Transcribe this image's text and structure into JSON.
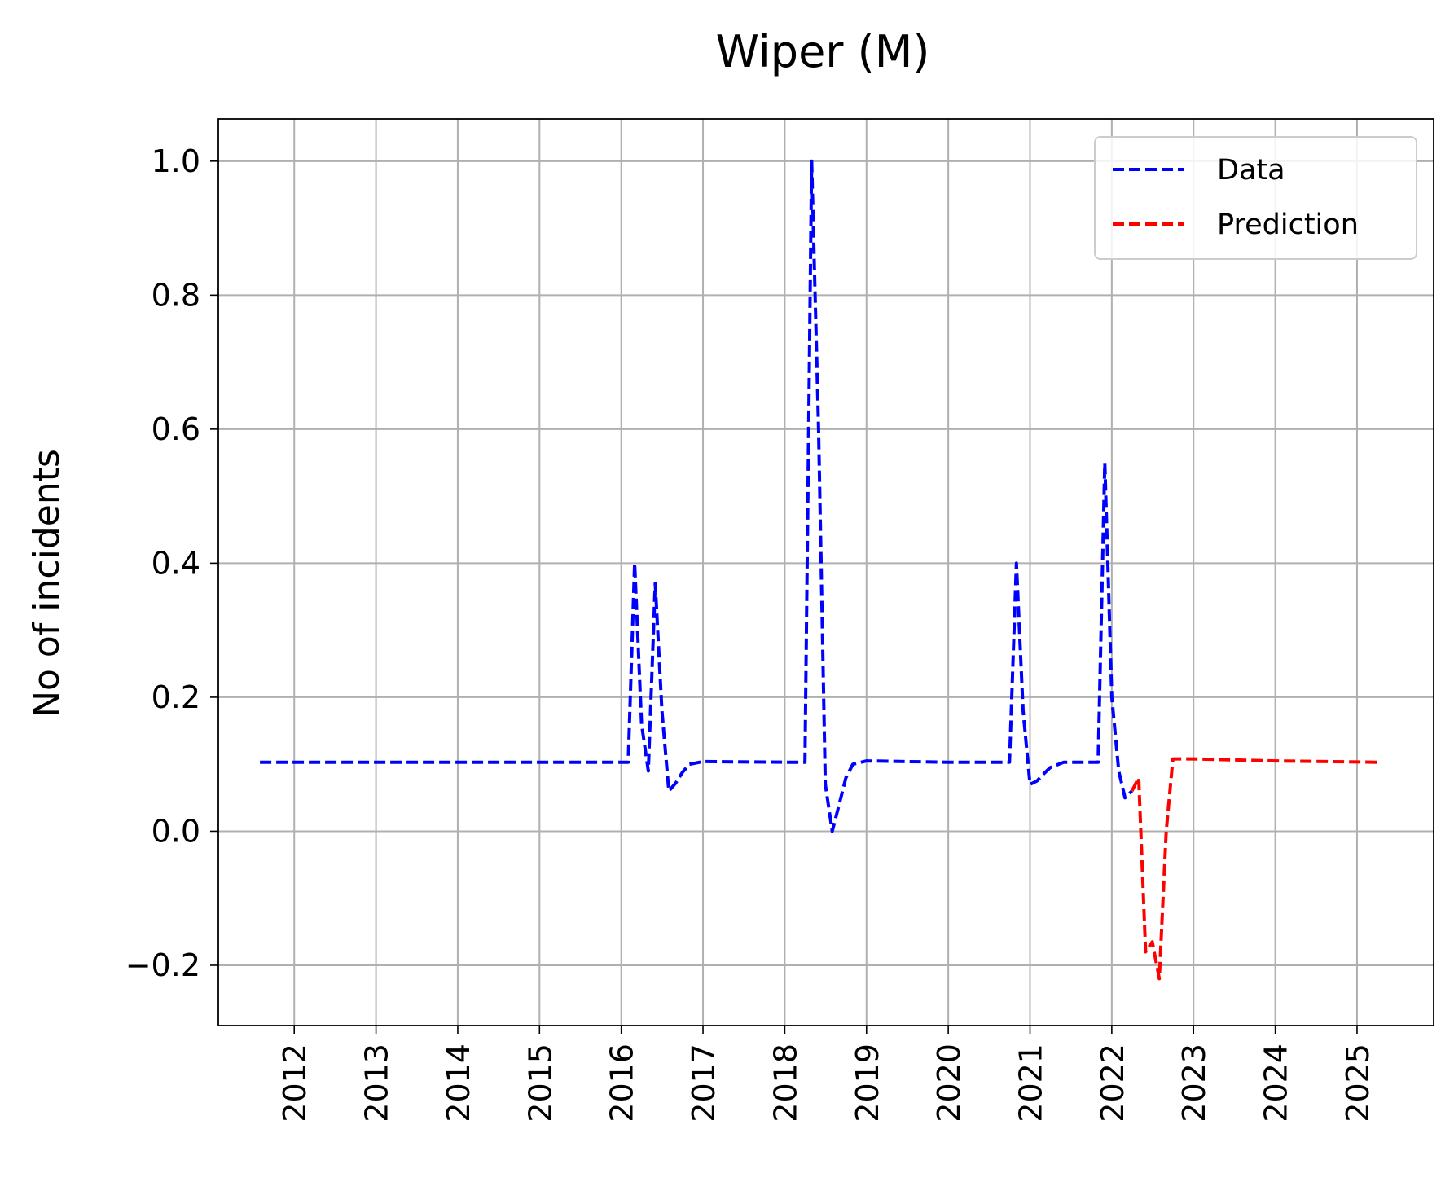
{
  "chart_data": {
    "type": "line",
    "title": "Wiper (M)",
    "xlabel": "",
    "ylabel": "No of incidents",
    "x_ticks": [
      "2012",
      "2013",
      "2014",
      "2015",
      "2016",
      "2017",
      "2018",
      "2019",
      "2020",
      "2021",
      "2022",
      "2023",
      "2024",
      "2025"
    ],
    "y_ticks": [
      "−0.2",
      "0.0",
      "0.2",
      "0.4",
      "0.6",
      "0.8",
      "1.0"
    ],
    "y_tick_values": [
      -0.2,
      0.0,
      0.2,
      0.4,
      0.6,
      0.8,
      1.0
    ],
    "xlim": [
      "2011-01-27",
      "2025-12-09"
    ],
    "ylim": [
      -0.29,
      1.063
    ],
    "grid": true,
    "legend": "upper-right",
    "series": [
      {
        "name": "Data",
        "color": "#0000ff",
        "style": "dashed",
        "points": [
          [
            "2011-08-01",
            0.103
          ],
          [
            "2012-01-01",
            0.103
          ],
          [
            "2013-01-01",
            0.103
          ],
          [
            "2014-01-01",
            0.103
          ],
          [
            "2015-01-01",
            0.103
          ],
          [
            "2016-01-01",
            0.103
          ],
          [
            "2016-02-01",
            0.103
          ],
          [
            "2016-03-01",
            0.4
          ],
          [
            "2016-04-01",
            0.16
          ],
          [
            "2016-05-01",
            0.09
          ],
          [
            "2016-06-01",
            0.37
          ],
          [
            "2016-07-01",
            0.18
          ],
          [
            "2016-08-01",
            0.06
          ],
          [
            "2016-09-01",
            0.072
          ],
          [
            "2016-10-01",
            0.088
          ],
          [
            "2016-11-01",
            0.1
          ],
          [
            "2017-01-01",
            0.104
          ],
          [
            "2018-01-01",
            0.103
          ],
          [
            "2018-04-01",
            0.103
          ],
          [
            "2018-05-01",
            1.0
          ],
          [
            "2018-06-01",
            0.6
          ],
          [
            "2018-07-01",
            0.07
          ],
          [
            "2018-08-01",
            0.0
          ],
          [
            "2018-09-01",
            0.04
          ],
          [
            "2018-10-01",
            0.08
          ],
          [
            "2018-11-01",
            0.1
          ],
          [
            "2019-01-01",
            0.105
          ],
          [
            "2020-01-01",
            0.103
          ],
          [
            "2020-10-01",
            0.103
          ],
          [
            "2020-11-01",
            0.4
          ],
          [
            "2020-12-01",
            0.18
          ],
          [
            "2021-01-01",
            0.07
          ],
          [
            "2021-02-01",
            0.075
          ],
          [
            "2021-03-01",
            0.085
          ],
          [
            "2021-04-01",
            0.095
          ],
          [
            "2021-06-01",
            0.103
          ],
          [
            "2021-11-01",
            0.103
          ],
          [
            "2021-12-01",
            0.55
          ],
          [
            "2022-01-01",
            0.2
          ],
          [
            "2022-02-01",
            0.09
          ],
          [
            "2022-03-01",
            0.05
          ],
          [
            "2022-04-01",
            0.06
          ]
        ]
      },
      {
        "name": "Prediction",
        "color": "#ff0000",
        "style": "dashed",
        "points": [
          [
            "2022-04-01",
            0.06
          ],
          [
            "2022-05-01",
            0.08
          ],
          [
            "2022-06-01",
            -0.18
          ],
          [
            "2022-07-01",
            -0.165
          ],
          [
            "2022-08-01",
            -0.22
          ],
          [
            "2022-09-01",
            0.0
          ],
          [
            "2022-10-01",
            0.108
          ],
          [
            "2023-01-01",
            0.108
          ],
          [
            "2024-01-01",
            0.105
          ],
          [
            "2025-04-01",
            0.103
          ]
        ]
      }
    ]
  }
}
